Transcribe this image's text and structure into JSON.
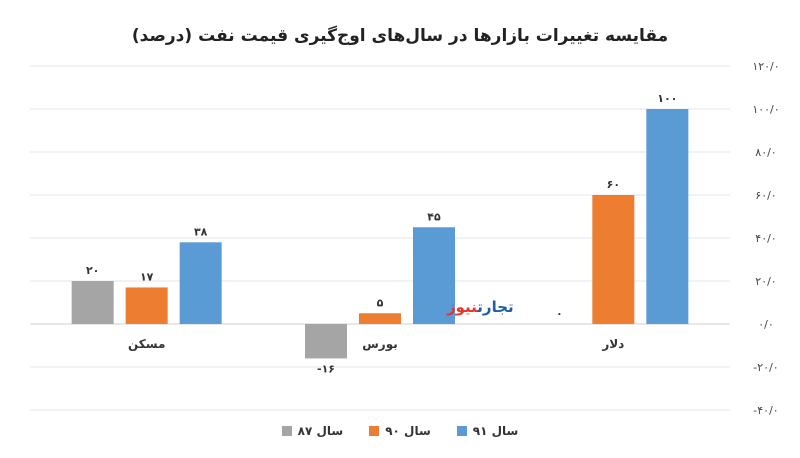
{
  "chart_data": {
    "type": "bar",
    "title": "مقایسه تغییرات بازارها در سال‌های اوج‌گیری قیمت نفت (درصد)",
    "categories": [
      "مسکن",
      "بورس",
      "دلار"
    ],
    "series": [
      {
        "name": "سال ۸۷",
        "color": "#a5a5a5",
        "values": [
          20,
          -16,
          0
        ],
        "labels": [
          "۲۰",
          "-۱۶",
          "۰"
        ]
      },
      {
        "name": "سال ۹۰",
        "color": "#ed7d31",
        "values": [
          17,
          5,
          60
        ],
        "labels": [
          "۱۷",
          "۵",
          "۶۰"
        ]
      },
      {
        "name": "سال ۹۱",
        "color": "#5b9bd5",
        "values": [
          38,
          45,
          100
        ],
        "labels": [
          "۳۸",
          "۴۵",
          "۱۰۰"
        ]
      }
    ],
    "ylim": [
      -40,
      120
    ],
    "yticks": [
      120,
      100,
      80,
      60,
      40,
      20,
      0,
      -20,
      -40
    ],
    "ytick_labels": [
      "۱۲۰/۰",
      "۱۰۰/۰",
      "۸۰/۰",
      "۶۰/۰",
      "۴۰/۰",
      "۲۰/۰",
      "۰/۰",
      "-۲۰/۰",
      "-۴۰/۰"
    ],
    "grid": true,
    "legend": "bottom"
  },
  "watermark": {
    "part_a": "تجارت",
    "part_b": "نیوز"
  }
}
